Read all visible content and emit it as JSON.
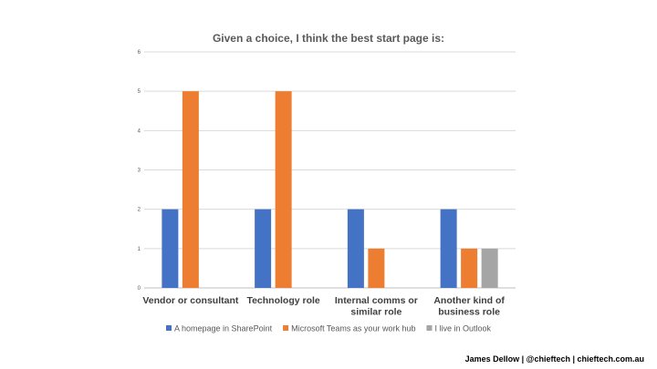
{
  "chart_data": {
    "type": "bar",
    "title": "Given a choice, I think the best start page is:",
    "categories": [
      [
        "Vendor or consultant"
      ],
      [
        "Technology role"
      ],
      [
        "Internal comms or",
        "similar role"
      ],
      [
        "Another kind of",
        "business role"
      ]
    ],
    "series": [
      {
        "name": "A homepage in SharePoint",
        "color": "#4472C4",
        "values": [
          2,
          2,
          2,
          2
        ]
      },
      {
        "name": "Microsoft Teams as your work hub",
        "color": "#ED7D31",
        "values": [
          5,
          5,
          1,
          1
        ]
      },
      {
        "name": "I live in Outlook",
        "color": "#A5A5A5",
        "values": [
          0,
          0,
          0,
          1
        ]
      }
    ],
    "ylim": [
      0,
      6
    ],
    "yticks": [
      "0",
      "1",
      "2",
      "3",
      "4",
      "5",
      "6"
    ],
    "grid": true,
    "legend_position": "bottom"
  },
  "footer": {
    "credit": "James Dellow | @chieftech | chieftech.com.au"
  }
}
